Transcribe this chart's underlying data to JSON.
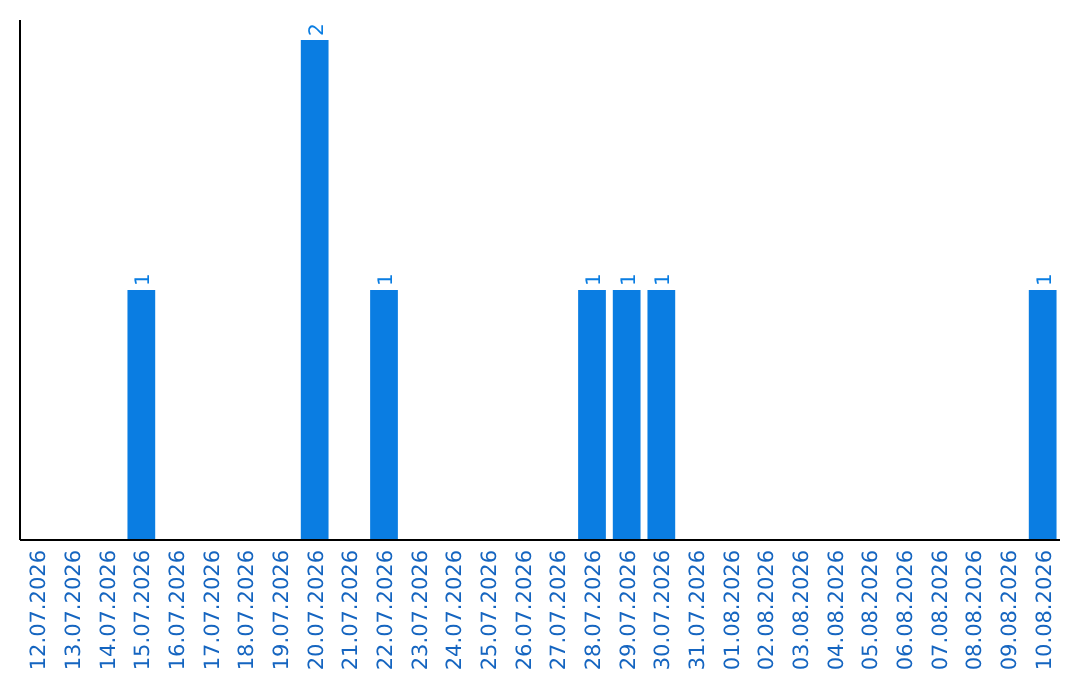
{
  "chart_data": {
    "type": "bar",
    "categories": [
      "12.07.2026",
      "13.07.2026",
      "14.07.2026",
      "15.07.2026",
      "16.07.2026",
      "17.07.2026",
      "18.07.2026",
      "19.07.2026",
      "20.07.2026",
      "21.07.2026",
      "22.07.2026",
      "23.07.2026",
      "24.07.2026",
      "25.07.2026",
      "26.07.2026",
      "27.07.2026",
      "28.07.2026",
      "29.07.2026",
      "30.07.2026",
      "31.07.2026",
      "01.08.2026",
      "02.08.2026",
      "03.08.2026",
      "04.08.2026",
      "05.08.2026",
      "06.08.2026",
      "07.08.2026",
      "08.08.2026",
      "09.08.2026",
      "10.08.2026"
    ],
    "values": [
      0,
      0,
      0,
      1,
      0,
      0,
      0,
      0,
      2,
      0,
      1,
      0,
      0,
      0,
      0,
      0,
      1,
      1,
      1,
      0,
      0,
      0,
      0,
      0,
      0,
      0,
      0,
      0,
      0,
      1
    ],
    "value_labels": [
      null,
      null,
      null,
      "1",
      null,
      null,
      null,
      null,
      "2",
      null,
      "1",
      null,
      null,
      null,
      null,
      null,
      "1",
      "1",
      "1",
      null,
      null,
      null,
      null,
      null,
      null,
      null,
      null,
      null,
      null,
      "1"
    ],
    "color": "#0a7de2",
    "tick_labels": "x"
  }
}
